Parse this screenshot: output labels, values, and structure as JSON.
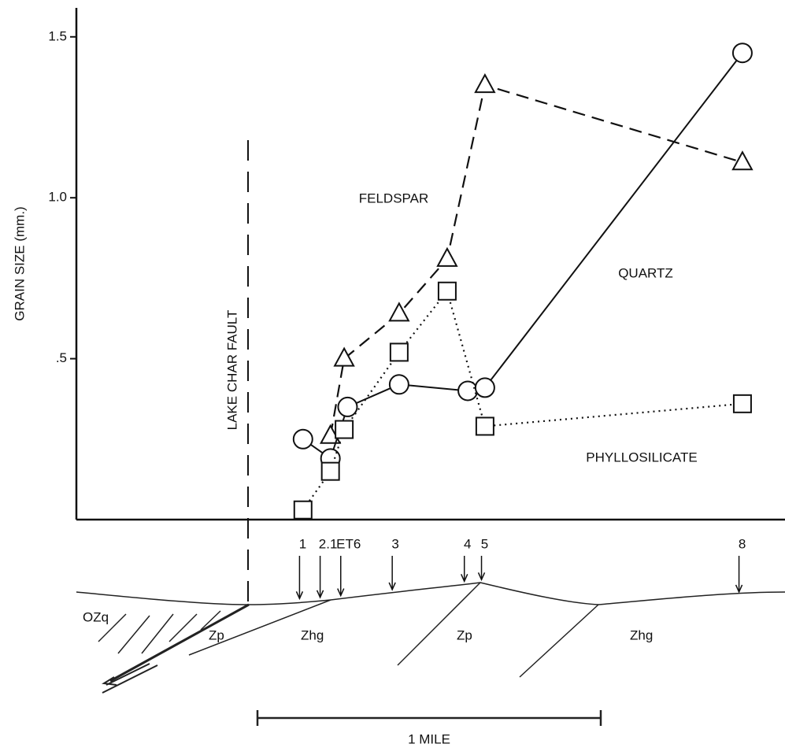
{
  "chart_data": {
    "type": "line",
    "ylabel": "GRAIN SIZE (mm.)",
    "ylim": [
      0,
      1.59
    ],
    "yticks": [
      {
        "value": 0.5,
        "label": ".5"
      },
      {
        "value": 1.0,
        "label": "1.0"
      },
      {
        "value": 1.5,
        "label": "1.5"
      }
    ],
    "xlim": [
      0,
      2.064
    ],
    "series": [
      {
        "name": "FELDSPAR",
        "color": "#111111",
        "marker": "triangle",
        "dash": "dashed",
        "x": [
          0.74,
          0.78,
          0.94,
          1.08,
          1.19,
          1.94
        ],
        "values": [
          0.26,
          0.5,
          0.64,
          0.81,
          1.35,
          1.11
        ]
      },
      {
        "name": "QUARTZ",
        "color": "#111111",
        "marker": "circle",
        "dash": "solid",
        "x": [
          0.66,
          0.74,
          0.79,
          0.94,
          1.14,
          1.19,
          1.94
        ],
        "values": [
          0.25,
          0.19,
          0.35,
          0.42,
          0.4,
          0.41,
          1.45
        ]
      },
      {
        "name": "PHYLLOSILICATE",
        "color": "#111111",
        "marker": "square",
        "dash": "dotted",
        "x": [
          0.66,
          0.74,
          0.78,
          0.94,
          1.08,
          1.19,
          1.94
        ],
        "values": [
          0.03,
          0.15,
          0.28,
          0.52,
          0.71,
          0.29,
          0.36
        ]
      }
    ],
    "fault": {
      "label": "LAKE CHAR FAULT",
      "x": 0.5
    },
    "stations": [
      {
        "label": "1",
        "x": 0.65
      },
      {
        "label": "2.1",
        "x": 0.71
      },
      {
        "label": "ET6",
        "x": 0.77
      },
      {
        "label": "3",
        "x": 0.92
      },
      {
        "label": "4",
        "x": 1.13
      },
      {
        "label": "5",
        "x": 1.18
      },
      {
        "label": "8",
        "x": 1.93
      }
    ],
    "units": [
      "OZq",
      "Zp",
      "Zhg",
      "Zp",
      "Zhg"
    ],
    "scale_bar": "1 MILE"
  }
}
